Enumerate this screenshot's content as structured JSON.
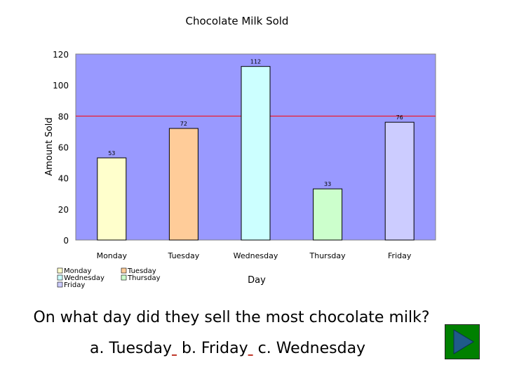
{
  "chart_data": {
    "type": "bar",
    "title": "Chocolate Milk Sold",
    "xlabel": "Day",
    "ylabel": "Amount Sold",
    "categories": [
      "Monday",
      "Tuesday",
      "Wednesday",
      "Thursday",
      "Friday"
    ],
    "values": [
      53,
      72,
      112,
      33,
      76
    ],
    "bar_colors": [
      "#ffffcc",
      "#ffcc99",
      "#ccffff",
      "#ccffcc",
      "#ccccff"
    ],
    "yticks": [
      0,
      20,
      40,
      60,
      80,
      100,
      120
    ],
    "ylim": [
      0,
      120
    ],
    "reference_line": {
      "value": 80,
      "color": "#ff0000"
    },
    "plot_background": "#9999ff",
    "legend": {
      "placement": "bottom-left",
      "entries": [
        "Monday",
        "Tuesday",
        "Wednesday",
        "Thursday",
        "Friday"
      ]
    }
  },
  "quiz": {
    "question": "On what day did they sell the most chocolate milk?",
    "option_a": "a. Tuesday",
    "option_b": "b. Friday",
    "option_c": "c. Wednesday"
  },
  "next_button": {
    "icon": "play-triangle-icon",
    "color": "#008000"
  }
}
